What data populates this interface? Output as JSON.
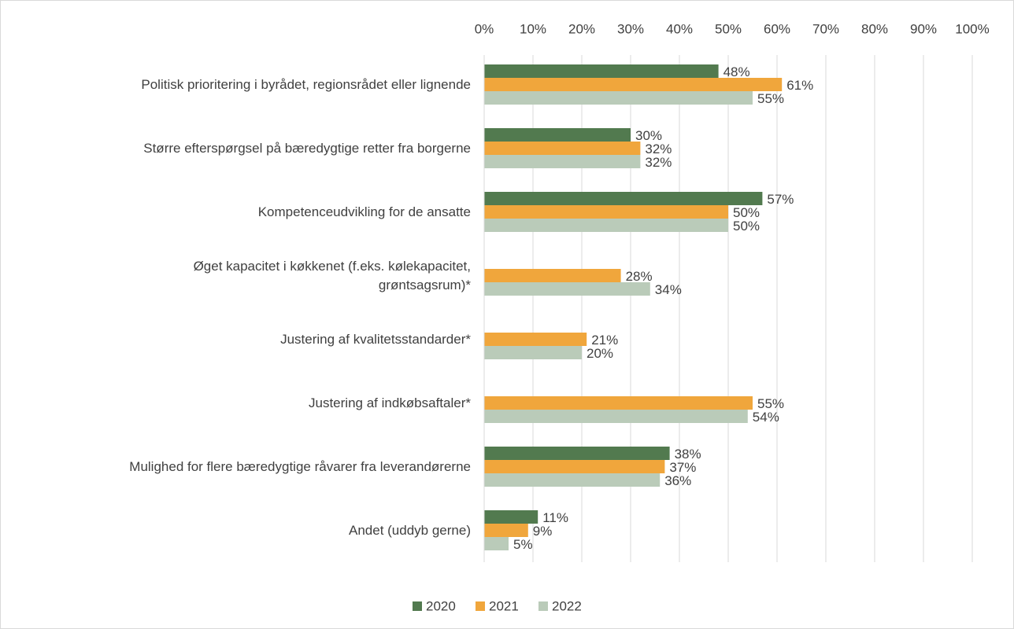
{
  "chart_data": {
    "type": "hbar",
    "categories": [
      "Politisk prioritering i byrådet, regionsrådet eller lignende",
      "Større efterspørgsel på bæredygtige retter fra borgerne",
      "Kompetenceudvikling for de ansatte",
      "Øget kapacitet i køkkenet (f.eks. kølekapacitet,\ngrøntsagsrum)*",
      "Justering af kvalitetsstandarder*",
      "Justering af indkøbsaftaler*",
      "Mulighed for flere bæredygtige råvarer fra leverandørerne",
      "Andet (uddyb gerne)"
    ],
    "series": [
      {
        "name": "2020",
        "color": "#527a4f",
        "values": [
          48,
          30,
          57,
          null,
          null,
          null,
          38,
          11
        ],
        "value_labels": [
          "48%",
          "30%",
          "57%",
          null,
          null,
          null,
          "38%",
          "11%"
        ]
      },
      {
        "name": "2021",
        "color": "#f0a63c",
        "values": [
          61,
          32,
          50,
          28,
          21,
          55,
          37,
          9
        ],
        "value_labels": [
          "61%",
          "32%",
          "50%",
          "28%",
          "21%",
          "55%",
          "37%",
          "9%"
        ]
      },
      {
        "name": "2022",
        "color": "#bacbb9",
        "values": [
          55,
          32,
          50,
          34,
          20,
          54,
          36,
          5
        ],
        "value_labels": [
          "55%",
          "32%",
          "50%",
          "34%",
          "20%",
          "54%",
          "36%",
          "5%"
        ]
      }
    ],
    "xlim": [
      0,
      100
    ],
    "xticks": [
      {
        "value": 0,
        "label": "0%"
      },
      {
        "value": 10,
        "label": "10%"
      },
      {
        "value": 20,
        "label": "20%"
      },
      {
        "value": 30,
        "label": "30%"
      },
      {
        "value": 40,
        "label": "40%"
      },
      {
        "value": 50,
        "label": "50%"
      },
      {
        "value": 60,
        "label": "60%"
      },
      {
        "value": 70,
        "label": "70%"
      },
      {
        "value": 80,
        "label": "80%"
      },
      {
        "value": 90,
        "label": "90%"
      },
      {
        "value": 100,
        "label": "100%"
      }
    ],
    "grid": true,
    "legend": "bottom"
  }
}
